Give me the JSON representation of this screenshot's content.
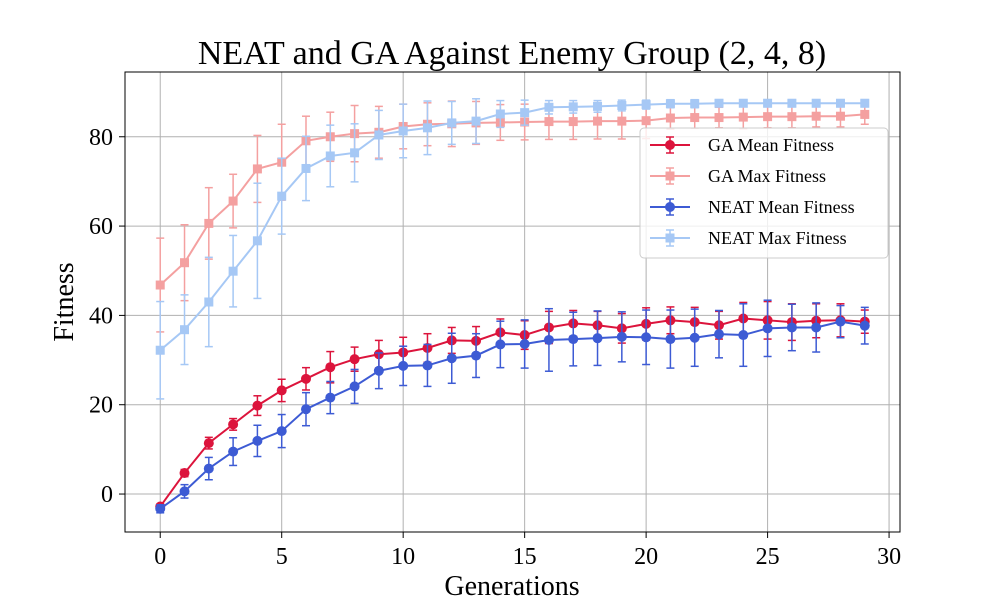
{
  "chart_data": {
    "type": "line",
    "title": "NEAT and GA Against Enemy Group (2, 4, 8)",
    "xlabel": "Generations",
    "ylabel": "Fitness",
    "xlim": [
      -1.45,
      30.45
    ],
    "ylim": [
      -8.5,
      94.5
    ],
    "xticks": [
      0,
      5,
      10,
      15,
      20,
      25,
      30
    ],
    "yticks": [
      0,
      20,
      40,
      60,
      80
    ],
    "grid": true,
    "legend_position": "right",
    "x": [
      0,
      1,
      2,
      3,
      4,
      5,
      6,
      7,
      8,
      9,
      10,
      11,
      12,
      13,
      14,
      15,
      16,
      17,
      18,
      19,
      20,
      21,
      22,
      23,
      24,
      25,
      26,
      27,
      28,
      29
    ],
    "series": [
      {
        "name": "GA Mean Fitness",
        "color": "#dc143c",
        "marker": "circle",
        "values": [
          -2.8,
          4.7,
          11.4,
          15.6,
          19.8,
          23.2,
          25.8,
          28.4,
          30.2,
          31.3,
          31.7,
          32.7,
          34.4,
          34.3,
          36.2,
          35.6,
          37.3,
          38.2,
          37.8,
          37.1,
          38.1,
          38.9,
          38.5,
          37.8,
          39.3,
          38.9,
          38.5,
          38.8,
          38.9,
          38.6
        ],
        "errors": [
          0.5,
          0.8,
          1.3,
          1.3,
          2.2,
          2.5,
          2.5,
          3.5,
          2.7,
          3.1,
          3.4,
          3.2,
          2.9,
          3.2,
          3.0,
          3.2,
          3.6,
          2.9,
          3.1,
          3.3,
          3.6,
          3.0,
          3.3,
          3.1,
          3.6,
          4.2,
          4.1,
          3.8,
          3.7,
          2.6
        ]
      },
      {
        "name": "GA Max Fitness",
        "color": "#f4a0a0",
        "marker": "square",
        "values": [
          46.8,
          51.8,
          60.6,
          65.6,
          72.8,
          74.3,
          79.1,
          80.0,
          80.7,
          81.0,
          82.3,
          82.8,
          82.9,
          83.1,
          83.2,
          83.3,
          83.4,
          83.4,
          83.5,
          83.5,
          83.6,
          84.2,
          84.3,
          84.3,
          84.4,
          84.5,
          84.5,
          84.6,
          84.6,
          85.0
        ],
        "errors": [
          10.5,
          8.5,
          8.0,
          6.0,
          7.5,
          8.5,
          5.5,
          5.5,
          6.3,
          5.8,
          5.0,
          4.8,
          5.1,
          4.8,
          4.0,
          4.0,
          4.0,
          4.0,
          4.0,
          4.0,
          4.0,
          2.5,
          2.4,
          2.3,
          2.6,
          2.5,
          2.5,
          2.4,
          2.4,
          2.2
        ]
      },
      {
        "name": "NEAT Mean Fitness",
        "color": "#3d5bd4",
        "marker": "circle",
        "values": [
          -3.3,
          0.6,
          5.7,
          9.5,
          11.9,
          14.1,
          19.0,
          21.6,
          24.1,
          27.6,
          28.7,
          28.8,
          30.4,
          31.0,
          33.5,
          33.6,
          34.5,
          34.7,
          34.9,
          35.2,
          35.1,
          34.7,
          35.0,
          35.8,
          35.6,
          37.1,
          37.3,
          37.3,
          38.6,
          37.7
        ],
        "errors": [
          0.9,
          1.5,
          2.5,
          3.1,
          3.5,
          3.7,
          3.7,
          3.6,
          3.8,
          4.0,
          4.4,
          4.7,
          5.6,
          4.9,
          5.2,
          5.4,
          7.0,
          6.0,
          6.1,
          5.6,
          6.1,
          6.5,
          6.4,
          5.3,
          7.0,
          6.3,
          5.2,
          5.5,
          3.6,
          4.1
        ]
      },
      {
        "name": "NEAT Max Fitness",
        "color": "#a6c8f5",
        "marker": "square",
        "values": [
          32.2,
          36.8,
          43.0,
          49.9,
          56.7,
          66.7,
          72.9,
          75.7,
          76.4,
          80.4,
          81.3,
          82.0,
          83.1,
          83.5,
          85.1,
          85.4,
          86.6,
          86.7,
          86.8,
          87.0,
          87.2,
          87.4,
          87.4,
          87.5,
          87.5,
          87.5,
          87.5,
          87.5,
          87.5,
          87.5
        ],
        "errors": [
          10.9,
          7.8,
          10.0,
          8.0,
          12.9,
          8.5,
          7.2,
          6.9,
          6.5,
          5.5,
          6.0,
          6.0,
          4.8,
          5.0,
          3.0,
          2.8,
          1.5,
          1.4,
          1.3,
          1.2,
          1.0,
          0.9,
          0.9,
          0.8,
          0.8,
          0.8,
          0.8,
          0.8,
          0.8,
          0.8
        ]
      }
    ]
  }
}
